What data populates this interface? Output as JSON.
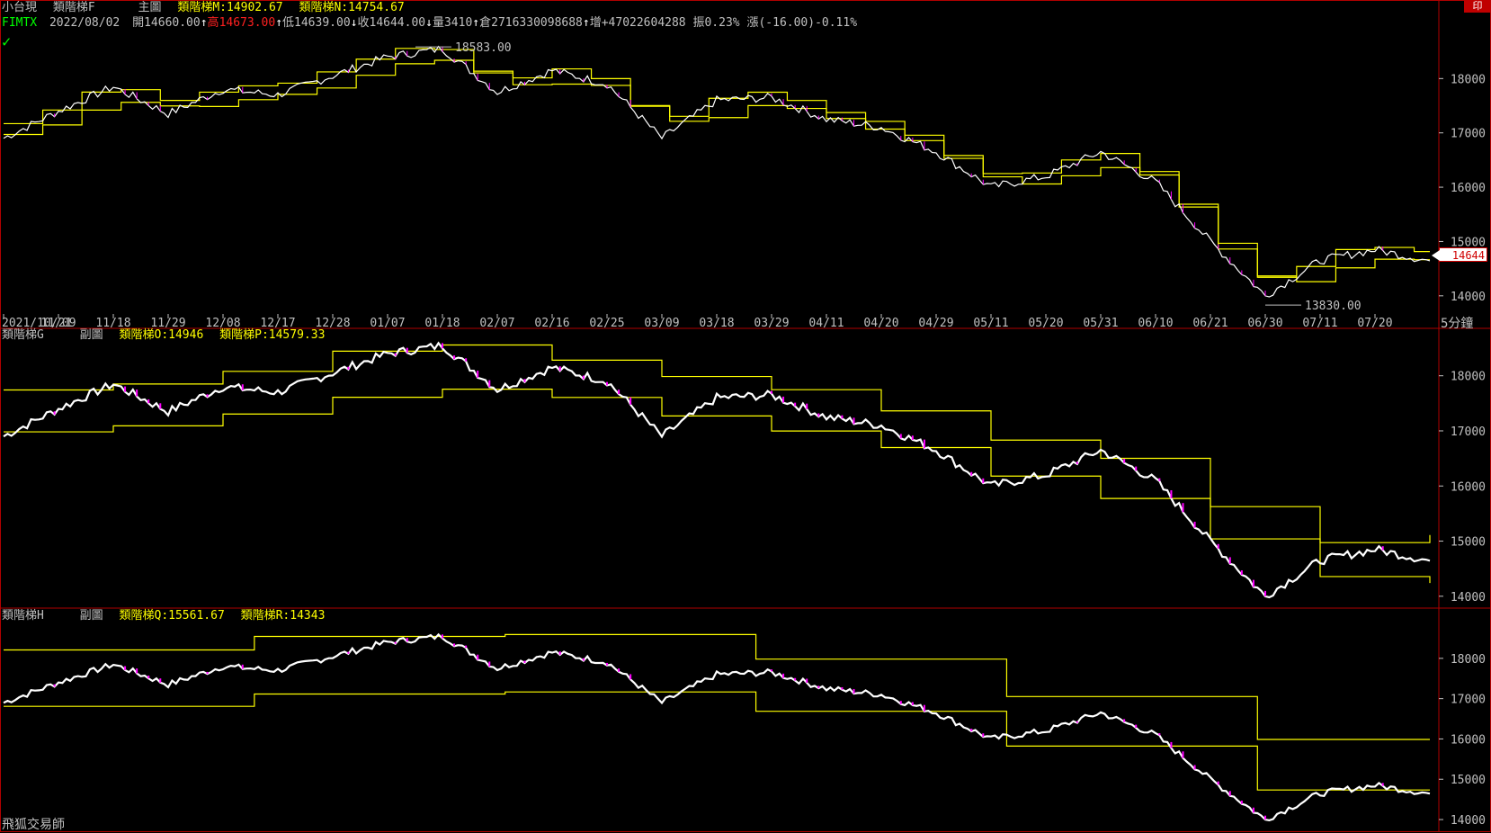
{
  "header": {
    "product": "小台現",
    "indicator": "類階梯F",
    "panel_label": "主圖",
    "m_label": "類階梯M:",
    "m_value": "14902.67",
    "n_label": "類階梯N:",
    "n_value": "14754.67",
    "symbol": "FIMTX",
    "date": "2022/08/02",
    "open_label": "開",
    "open": "14660.00",
    "up_arrow": "↑",
    "high_label": "高",
    "high": "14673.00",
    "low_label": "低",
    "low": "14639.00",
    "down_arrow": "↓",
    "close_label": "收",
    "close": "14644.00",
    "volume_label": "量",
    "volume": "3410",
    "oi_label": "倉",
    "oi": "2716330098688",
    "inc_label": "增",
    "inc": "+47022604288",
    "amp_label": "振",
    "amp": "0.23%",
    "chg_label": "漲",
    "chg": "(-16.00)-0.11%",
    "corner": "印"
  },
  "panel2": {
    "title": "類階梯G",
    "label": "副圖",
    "o_label": "類階梯O:",
    "o_value": "14946",
    "p_label": "類階梯P:",
    "p_value": "14579.33"
  },
  "panel3": {
    "title": "類階梯H",
    "label": "副圖",
    "q_label": "類階梯Q:",
    "q_value": "15561.67",
    "r_label": "類階梯R:",
    "r_value": "14343"
  },
  "last_price": "14644",
  "interval": "5分鐘",
  "brand": "飛狐交易師",
  "colors": {
    "background": "#000000",
    "frame": "#b00000",
    "axis_text": "#c0c0c0",
    "step_line": "#ffff00",
    "price_up": "#ffffff",
    "price_down": "#ff00ff",
    "header_yellow": "#ffff00",
    "header_red": "#ff2020",
    "symbol_green": "#00ff00"
  },
  "chart_data": [
    {
      "type": "line",
      "panel": "main",
      "title": "主圖",
      "x_tick_labels": [
        "2021/10/21",
        "11/09",
        "11/18",
        "11/29",
        "12/08",
        "12/17",
        "12/28",
        "01/07",
        "01/18",
        "02/07",
        "02/16",
        "02/25",
        "03/09",
        "03/18",
        "03/29",
        "04/11",
        "04/20",
        "04/29",
        "05/11",
        "05/20",
        "05/31",
        "06/10",
        "06/21",
        "06/30",
        "07/11",
        "07/20"
      ],
      "y_ticks": [
        14000,
        15000,
        16000,
        17000,
        18000
      ],
      "ylim": [
        13550,
        18850
      ],
      "annotations": [
        {
          "text": "18583.00",
          "kind": "high"
        },
        {
          "text": "13830.00",
          "kind": "low"
        }
      ],
      "price_series": {
        "name": "FIMTX",
        "x": [
          "2021/10/21",
          "11/09",
          "11/18",
          "11/29",
          "12/08",
          "12/17",
          "12/28",
          "01/07",
          "01/18",
          "02/07",
          "02/16",
          "02/25",
          "03/09",
          "03/18",
          "03/29",
          "04/11",
          "04/20",
          "04/29",
          "05/11",
          "05/20",
          "05/31",
          "06/10",
          "06/21",
          "06/30",
          "07/11",
          "07/20",
          "08/02"
        ],
        "y": [
          16900,
          17400,
          17850,
          17350,
          17800,
          17700,
          18050,
          18400,
          18550,
          17750,
          18150,
          17900,
          16900,
          17600,
          17650,
          17250,
          17100,
          16650,
          16000,
          16200,
          16650,
          16100,
          15000,
          14000,
          14650,
          14850,
          14644
        ]
      },
      "step_series": [
        {
          "name": "類階梯M",
          "last": 14902.67
        },
        {
          "name": "類階梯N",
          "last": 14754.67
        }
      ]
    },
    {
      "type": "line",
      "panel": "sub1",
      "title": "類階梯G",
      "y_ticks": [
        14000,
        15000,
        16000,
        17000,
        18000
      ],
      "ylim": [
        13850,
        18550
      ],
      "step_series": [
        {
          "name": "類階梯O",
          "last": 14946
        },
        {
          "name": "類階梯P",
          "last": 14579.33
        }
      ]
    },
    {
      "type": "line",
      "panel": "sub2",
      "title": "類階梯H",
      "y_ticks": [
        14000,
        15000,
        16000,
        17000,
        18000
      ],
      "ylim": [
        13800,
        18800
      ],
      "step_series": [
        {
          "name": "類階梯Q",
          "last": 15561.67
        },
        {
          "name": "類階梯R",
          "last": 14343
        }
      ]
    }
  ]
}
